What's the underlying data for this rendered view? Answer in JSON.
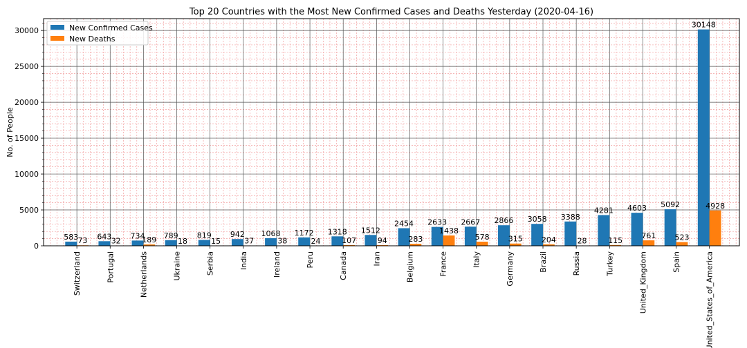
{
  "chart_data": {
    "type": "bar",
    "title": "Top 20 Countries with the Most New Confirmed Cases and Deaths Yesterday (2020-04-16)",
    "xlabel": "",
    "ylabel": "No. of People",
    "ylim": [
      0,
      31650
    ],
    "yticks": [
      0,
      5000,
      10000,
      15000,
      20000,
      25000,
      30000
    ],
    "grid": true,
    "legend_position": "top-left",
    "categories": [
      "Switzerland",
      "Portugal",
      "Netherlands",
      "Ukraine",
      "Serbia",
      "India",
      "Ireland",
      "Peru",
      "Canada",
      "Iran",
      "Belgium",
      "France",
      "Italy",
      "Germany",
      "Brazil",
      "Russia",
      "Turkey",
      "United_Kingdom",
      "Spain",
      "United_States_of_America"
    ],
    "series": [
      {
        "name": "New Confirmed Cases",
        "color": "#1f77b4",
        "values": [
          583,
          643,
          734,
          789,
          819,
          942,
          1068,
          1172,
          1318,
          1512,
          2454,
          2633,
          2667,
          2866,
          3058,
          3388,
          4281,
          4603,
          5092,
          30148
        ]
      },
      {
        "name": "New Deaths",
        "color": "#ff7f0e",
        "values": [
          73,
          32,
          189,
          18,
          15,
          37,
          38,
          24,
          107,
          94,
          283,
          1438,
          578,
          315,
          204,
          28,
          115,
          761,
          523,
          4928
        ]
      }
    ]
  }
}
